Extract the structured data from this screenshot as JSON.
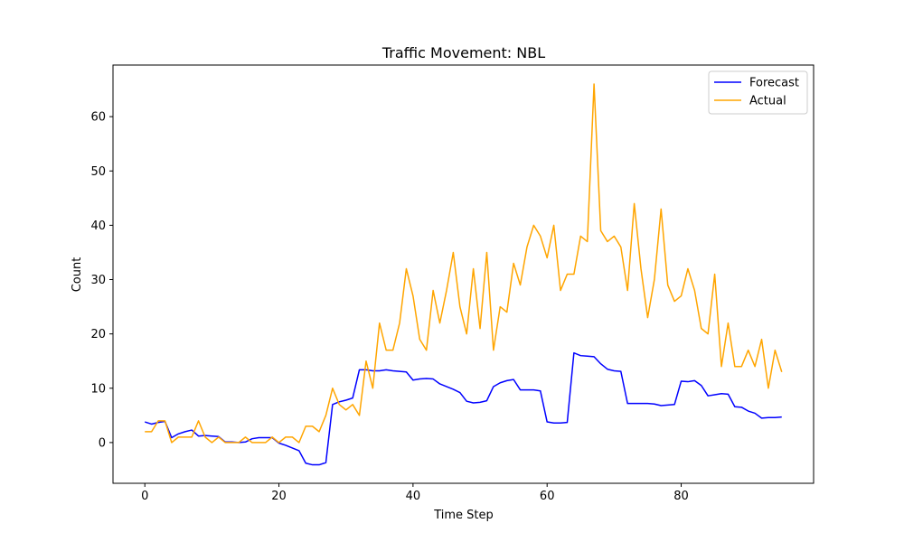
{
  "chart_data": {
    "type": "line",
    "title": "Traffic Movement: NBL",
    "xlabel": "Time Step",
    "ylabel": "Count",
    "xlim": [
      -4.75,
      99.75
    ],
    "ylim": [
      -7.5,
      69.5
    ],
    "xticks": [
      0,
      20,
      40,
      60,
      80
    ],
    "yticks": [
      0,
      10,
      20,
      30,
      40,
      50,
      60
    ],
    "grid": false,
    "legend_position": "top-right",
    "series": [
      {
        "name": "Forecast",
        "color": "#0000ff",
        "values": [
          3.8,
          3.4,
          3.7,
          3.9,
          0.9,
          1.6,
          2.0,
          2.3,
          1.2,
          1.3,
          1.2,
          1.1,
          0.1,
          0.1,
          0.0,
          0.1,
          0.7,
          0.9,
          0.9,
          0.9,
          -0.1,
          -0.5,
          -1.0,
          -1.5,
          -3.8,
          -4.1,
          -4.1,
          -3.7,
          7.0,
          7.5,
          7.8,
          8.2,
          13.4,
          13.4,
          13.2,
          13.2,
          13.4,
          13.2,
          13.1,
          13.0,
          11.5,
          11.7,
          11.8,
          11.7,
          10.8,
          10.3,
          9.8,
          9.2,
          7.6,
          7.3,
          7.4,
          7.7,
          10.3,
          11.0,
          11.4,
          11.6,
          9.7,
          9.7,
          9.7,
          9.5,
          3.8,
          3.6,
          3.6,
          3.7,
          16.5,
          16.0,
          15.9,
          15.8,
          14.5,
          13.5,
          13.2,
          13.1,
          7.2,
          7.2,
          7.2,
          7.2,
          7.1,
          6.8,
          6.9,
          7.0,
          11.3,
          11.2,
          11.4,
          10.5,
          8.6,
          8.8,
          9.0,
          8.9,
          6.6,
          6.5,
          5.8,
          5.4,
          4.5,
          4.6,
          4.6,
          4.7
        ]
      },
      {
        "name": "Actual",
        "color": "#ffa500",
        "values": [
          2,
          2,
          4,
          4,
          0,
          1,
          1,
          1,
          4,
          1,
          0,
          1,
          0,
          0,
          0,
          1,
          0,
          0,
          0,
          1,
          0,
          1,
          1,
          0,
          3,
          3,
          2,
          5,
          10,
          7,
          6,
          7,
          5,
          15,
          10,
          22,
          17,
          17,
          22,
          32,
          27,
          19,
          17,
          28,
          22,
          28,
          35,
          25,
          20,
          32,
          21,
          35,
          17,
          25,
          24,
          33,
          29,
          36,
          40,
          38,
          34,
          40,
          28,
          31,
          31,
          38,
          37,
          66,
          39,
          37,
          38,
          36,
          28,
          44,
          32,
          23,
          30,
          43,
          29,
          26,
          27,
          32,
          28,
          21,
          20,
          31,
          14,
          22,
          14,
          14,
          17,
          14,
          19,
          10,
          17,
          13
        ]
      }
    ]
  }
}
